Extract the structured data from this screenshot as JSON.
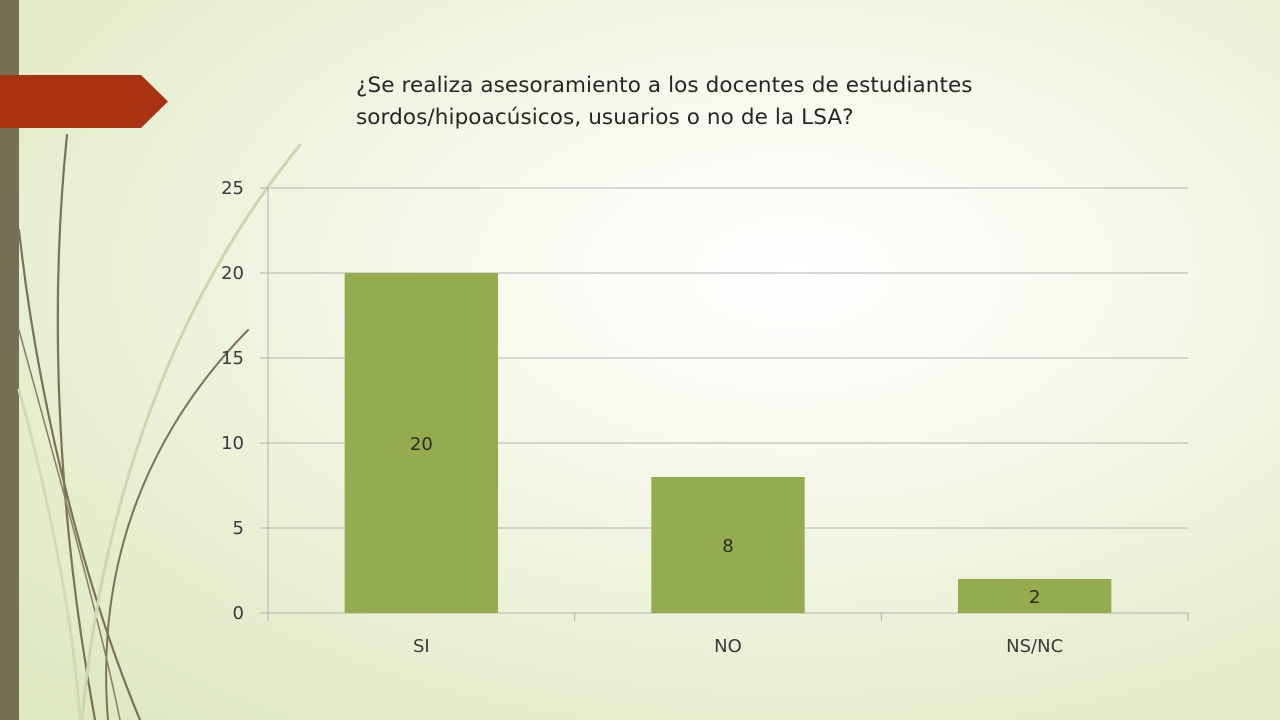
{
  "slide": {
    "title": "¿Se realiza asesoramiento a los docentes de estudiantes sordos/hipoacúsicos, usuarios o no de la LSA?"
  },
  "colors": {
    "background": "#e9efd3",
    "left_bar": "#757055",
    "accent_tab": "#a93211",
    "bar_fill": "#94ac4e",
    "gridline": "#b3b3b3",
    "deco_curves": "#7a7354"
  },
  "chart_data": {
    "type": "bar",
    "title": "",
    "xlabel": "",
    "ylabel": "",
    "categories": [
      "SI",
      "NO",
      "NS/NC"
    ],
    "values": [
      20,
      8,
      2
    ],
    "data_labels": [
      "20",
      "8",
      "2"
    ],
    "ylim": [
      0,
      25
    ],
    "yticks": [
      0,
      5,
      10,
      15,
      20,
      25
    ],
    "grid": true,
    "legend": "none"
  }
}
